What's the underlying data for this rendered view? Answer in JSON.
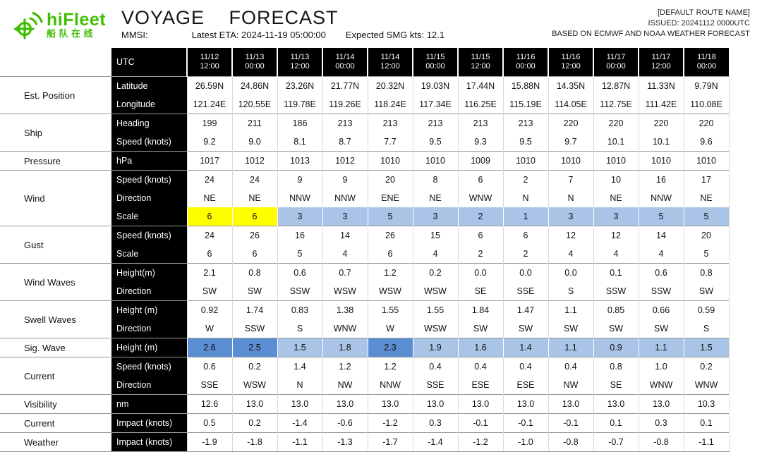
{
  "header": {
    "logo": {
      "brand": "hiFleet",
      "brand_cn": "船队在线"
    },
    "title": "VOYAGE FORECAST",
    "mmsi_label": "MMSI:",
    "eta": "Latest ETA: 2024-11-19 05:00:00",
    "smg": "Expected SMG kts: 12.1",
    "route_name": "[DEFAULT ROUTE NAME]",
    "issued": "ISSUED: 20241112 0000UTC",
    "based_on": "BASED ON ECMWF AND NOAA WEATHER FORECAST"
  },
  "colors": {
    "brand_green": "#3fbf00",
    "highlight_yellow": "#ffff00",
    "highlight_blue": "#a9c4e6",
    "highlight_darkblue": "#5b8dd2"
  },
  "table": {
    "utc_label": "UTC",
    "columns": [
      {
        "date": "11/12",
        "time": "12:00"
      },
      {
        "date": "11/13",
        "time": "00:00"
      },
      {
        "date": "11/13",
        "time": "12:00"
      },
      {
        "date": "11/14",
        "time": "00:00"
      },
      {
        "date": "11/14",
        "time": "12:00"
      },
      {
        "date": "11/15",
        "time": "00:00"
      },
      {
        "date": "11/15",
        "time": "12:00"
      },
      {
        "date": "11/16",
        "time": "00:00"
      },
      {
        "date": "11/16",
        "time": "12:00"
      },
      {
        "date": "11/17",
        "time": "00:00"
      },
      {
        "date": "11/17",
        "time": "12:00"
      },
      {
        "date": "11/18",
        "time": "00:00"
      }
    ],
    "groups": [
      {
        "name": "Est. Position",
        "rows": [
          {
            "label": "Latitude",
            "values": [
              "26.59N",
              "24.86N",
              "23.26N",
              "21.77N",
              "20.32N",
              "19.03N",
              "17.44N",
              "15.88N",
              "14.35N",
              "12.87N",
              "11.33N",
              "9.79N"
            ]
          },
          {
            "label": "Longitude",
            "values": [
              "121.24E",
              "120.55E",
              "119.78E",
              "119.26E",
              "118.24E",
              "117.34E",
              "116.25E",
              "115.19E",
              "114.05E",
              "112.75E",
              "111.42E",
              "110.08E"
            ]
          }
        ]
      },
      {
        "name": "Ship",
        "rows": [
          {
            "label": "Heading",
            "values": [
              "199",
              "211",
              "186",
              "213",
              "213",
              "213",
              "213",
              "213",
              "220",
              "220",
              "220",
              "220"
            ]
          },
          {
            "label": "Speed (knots)",
            "values": [
              "9.2",
              "9.0",
              "8.1",
              "8.7",
              "7.7",
              "9.5",
              "9.3",
              "9.5",
              "9.7",
              "10.1",
              "10.1",
              "9.6"
            ]
          }
        ]
      },
      {
        "name": "Pressure",
        "rows": [
          {
            "label": "hPa",
            "values": [
              "1017",
              "1012",
              "1013",
              "1012",
              "1010",
              "1010",
              "1009",
              "1010",
              "1010",
              "1010",
              "1010",
              "1010"
            ]
          }
        ]
      },
      {
        "name": "Wind",
        "rows": [
          {
            "label": "Speed (knots)",
            "values": [
              "24",
              "24",
              "9",
              "9",
              "20",
              "8",
              "6",
              "2",
              "7",
              "10",
              "16",
              "17"
            ]
          },
          {
            "label": "Direction",
            "values": [
              "NE",
              "NE",
              "NNW",
              "NNW",
              "ENE",
              "NE",
              "WNW",
              "N",
              "N",
              "NE",
              "NNW",
              "NE"
            ]
          },
          {
            "label": "Scale",
            "values": [
              "6",
              "6",
              "3",
              "3",
              "5",
              "3",
              "2",
              "1",
              "3",
              "3",
              "5",
              "5"
            ],
            "highlights": [
              "yellow",
              "yellow",
              "blue",
              "blue",
              "blue",
              "blue",
              "blue",
              "blue",
              "blue",
              "blue",
              "blue",
              "blue"
            ]
          }
        ]
      },
      {
        "name": "Gust",
        "rows": [
          {
            "label": "Speed (knots)",
            "values": [
              "24",
              "26",
              "16",
              "14",
              "26",
              "15",
              "6",
              "6",
              "12",
              "12",
              "14",
              "20"
            ]
          },
          {
            "label": "Scale",
            "values": [
              "6",
              "6",
              "5",
              "4",
              "6",
              "4",
              "2",
              "2",
              "4",
              "4",
              "4",
              "5"
            ]
          }
        ]
      },
      {
        "name": "Wind Waves",
        "rows": [
          {
            "label": "Height(m)",
            "values": [
              "2.1",
              "0.8",
              "0.6",
              "0.7",
              "1.2",
              "0.2",
              "0.0",
              "0.0",
              "0.0",
              "0.1",
              "0.6",
              "0.8"
            ]
          },
          {
            "label": "Direction",
            "values": [
              "SW",
              "SW",
              "SSW",
              "WSW",
              "WSW",
              "WSW",
              "SE",
              "SSE",
              "S",
              "SSW",
              "SSW",
              "SW"
            ]
          }
        ]
      },
      {
        "name": "Swell Waves",
        "rows": [
          {
            "label": "Height (m)",
            "values": [
              "0.92",
              "1.74",
              "0.83",
              "1.38",
              "1.55",
              "1.55",
              "1.84",
              "1.47",
              "1.1",
              "0.85",
              "0.66",
              "0.59"
            ]
          },
          {
            "label": "Direction",
            "values": [
              "W",
              "SSW",
              "S",
              "WNW",
              "W",
              "WSW",
              "SW",
              "SW",
              "SW",
              "SW",
              "SW",
              "S"
            ]
          }
        ]
      },
      {
        "name": "Sig. Wave",
        "rows": [
          {
            "label": "Height  (m)",
            "values": [
              "2.6",
              "2.5",
              "1.5",
              "1.8",
              "2.3",
              "1.9",
              "1.6",
              "1.4",
              "1.1",
              "0.9",
              "1.1",
              "1.5"
            ],
            "highlights": [
              "darkblue",
              "darkblue",
              "blue",
              "blue",
              "darkblue",
              "blue",
              "blue",
              "blue",
              "blue",
              "blue",
              "blue",
              "blue"
            ]
          }
        ]
      },
      {
        "name": "Current",
        "rows": [
          {
            "label": "Speed (knots)",
            "values": [
              "0.6",
              "0.2",
              "1.4",
              "1.2",
              "1.2",
              "0.4",
              "0.4",
              "0.4",
              "0.4",
              "0.8",
              "1.0",
              "0.2"
            ]
          },
          {
            "label": "Direction",
            "values": [
              "SSE",
              "WSW",
              "N",
              "NW",
              "NNW",
              "SSE",
              "ESE",
              "ESE",
              "NW",
              "SE",
              "WNW",
              "WNW"
            ]
          }
        ]
      },
      {
        "name": "Visibility",
        "rows": [
          {
            "label": "nm",
            "values": [
              "12.6",
              "13.0",
              "13.0",
              "13.0",
              "13.0",
              "13.0",
              "13.0",
              "13.0",
              "13.0",
              "13.0",
              "13.0",
              "10.3"
            ]
          }
        ]
      },
      {
        "name": "Current",
        "rows": [
          {
            "label": "Impact (knots)",
            "values": [
              "0.5",
              "0.2",
              "-1.4",
              "-0.6",
              "-1.2",
              "0.3",
              "-0.1",
              "-0.1",
              "-0.1",
              "0.1",
              "0.3",
              "0.1"
            ]
          }
        ]
      },
      {
        "name": "Weather",
        "rows": [
          {
            "label": "Impact (knots)",
            "values": [
              "-1.9",
              "-1.8",
              "-1.1",
              "-1.3",
              "-1.7",
              "-1.4",
              "-1.2",
              "-1.0",
              "-0.8",
              "-0.7",
              "-0.8",
              "-1.1"
            ]
          }
        ]
      }
    ]
  }
}
